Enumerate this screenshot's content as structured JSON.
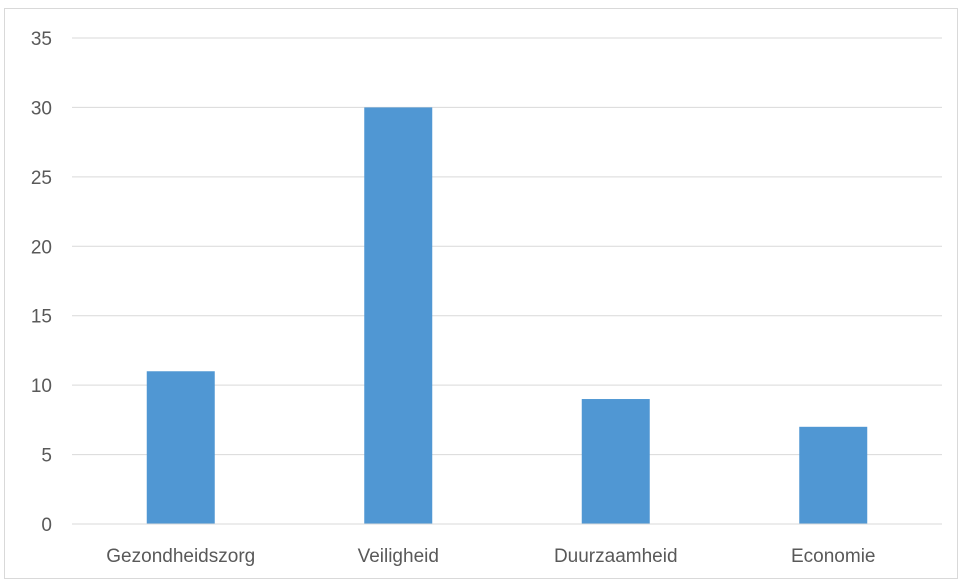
{
  "chart_data": {
    "type": "bar",
    "title": "",
    "xlabel": "",
    "ylabel": "",
    "categories": [
      "Gezondheidszorg",
      "Veiligheid",
      "Duurzaamheid",
      "Economie"
    ],
    "values": [
      11,
      30,
      9,
      7
    ],
    "ylim": [
      0,
      35
    ],
    "yticks": [
      "0",
      "5",
      "10",
      "15",
      "20",
      "25",
      "30",
      "35"
    ],
    "grid": true,
    "legend": "none",
    "bar_color": "#5097d3",
    "grid_color": "#d9d9d9"
  }
}
